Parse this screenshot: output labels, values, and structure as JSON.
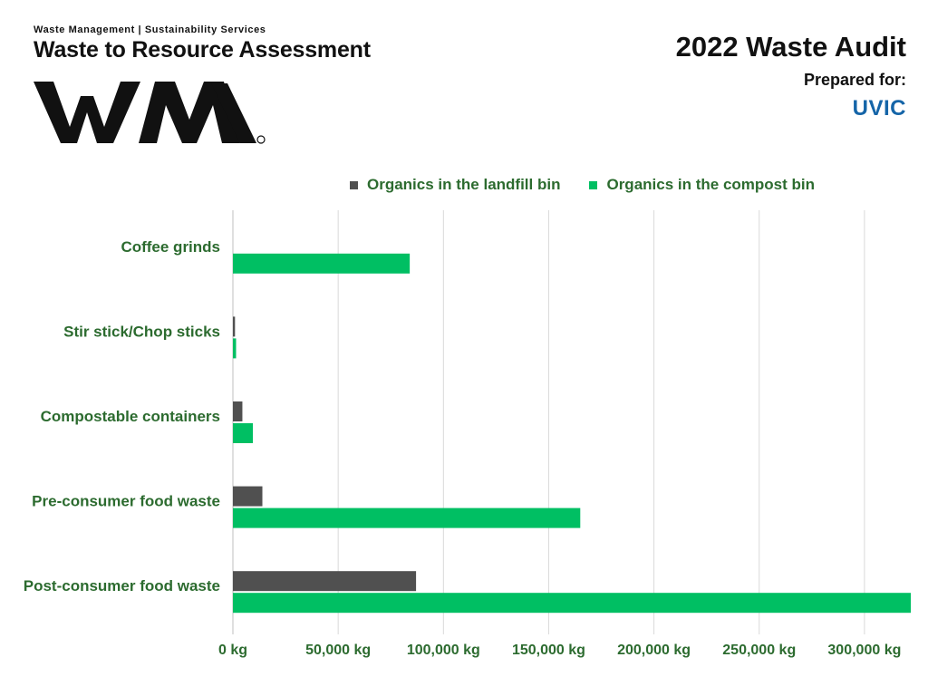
{
  "header": {
    "kicker": "Waste Management | Sustainability Services",
    "report_title": "Waste to Resource Assessment",
    "logo_text": "WM",
    "audit_title": "2022 Waste Audit",
    "prepared_for": "Prepared for:",
    "client": "UVIC"
  },
  "colors": {
    "landfill": "#505050",
    "compost": "#00bf63",
    "label_green": "#2c6b2f",
    "grid": "#d9d9d9"
  },
  "chart_data": {
    "type": "bar",
    "orientation": "horizontal",
    "categories": [
      "Coffee grinds",
      "Stir stick/Chop sticks",
      "Compostable containers",
      "Pre-consumer food waste",
      "Post-consumer food waste"
    ],
    "series": [
      {
        "name": "Organics in the landfill bin",
        "color": "#505050",
        "values": [
          0,
          1000,
          4500,
          14000,
          87000
        ]
      },
      {
        "name": "Organics in the compost bin",
        "color": "#00bf63",
        "values": [
          84000,
          1500,
          9500,
          165000,
          322000
        ]
      }
    ],
    "x_ticks": [
      0,
      50000,
      100000,
      150000,
      200000,
      250000,
      300000
    ],
    "x_tick_labels": [
      "0 kg",
      "50,000 kg",
      "100,000 kg",
      "150,000 kg",
      "200,000 kg",
      "250,000 kg",
      "300,000 kg"
    ],
    "xlim": [
      0,
      322000
    ],
    "legend_position": "top",
    "grid": true
  }
}
